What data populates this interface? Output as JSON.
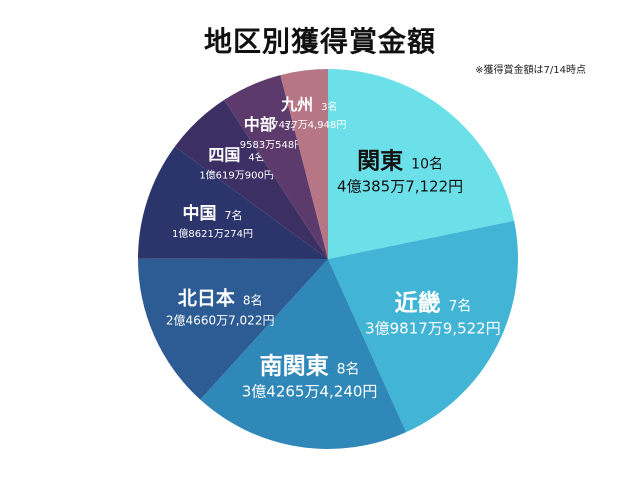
{
  "chart_data": {
    "type": "pie",
    "title": "地区別獲得賞金額",
    "note": "※獲得賞金額は7/14時点",
    "slices": [
      {
        "region": "関東",
        "count_label": "10名",
        "amount_label": "4億385万7,122円",
        "value": 403857122,
        "color": "#6be0e8"
      },
      {
        "region": "近畿",
        "count_label": "7名",
        "amount_label": "3億9817万9,522円",
        "value": 398179522,
        "color": "#42b5d6"
      },
      {
        "region": "南関東",
        "count_label": "8名",
        "amount_label": "3億4265万4,240円",
        "value": 342654240,
        "color": "#2f88b8"
      },
      {
        "region": "北日本",
        "count_label": "8名",
        "amount_label": "2億4660万7,022円",
        "value": 246607022,
        "color": "#2d5b94"
      },
      {
        "region": "中国",
        "count_label": "7名",
        "amount_label": "1億8621万274円",
        "value": 186210274,
        "color": "#2c356b"
      },
      {
        "region": "四国",
        "count_label": "4名",
        "amount_label": "1億619万900円",
        "value": 106190900,
        "color": "#3b2f63"
      },
      {
        "region": "中部",
        "count_label": "3名",
        "amount_label": "9583万548円",
        "value": 95830548,
        "color": "#5c3a6b"
      },
      {
        "region": "九州",
        "count_label": "3名",
        "amount_label": "7477万4,948円",
        "value": 74774948,
        "color": "#b77686"
      }
    ]
  }
}
